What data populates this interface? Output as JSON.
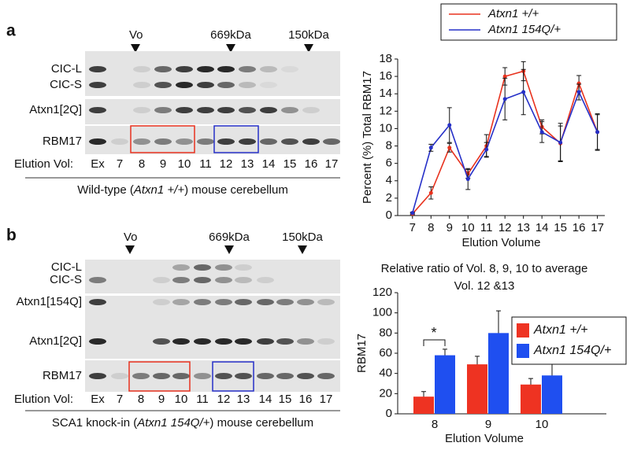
{
  "panels": [
    {
      "label": "a",
      "markers": [
        "Vo",
        "669kDa",
        "150kDa"
      ],
      "rows": [
        "CIC-L",
        "CIC-S",
        "Atxn1[2Q]",
        "RBM17"
      ],
      "lane_header": "Elution Vol:",
      "lanes": [
        "Ex",
        "7",
        "8",
        "9",
        "10",
        "11",
        "12",
        "13",
        "14",
        "15",
        "16",
        "17"
      ],
      "caption": [
        "Wild-type (",
        "Atxn1 +/+",
        ") mouse cerebellum"
      ]
    },
    {
      "label": "b",
      "markers": [
        "Vo",
        "669kDa",
        "150kDa"
      ],
      "rows": [
        "CIC-L",
        "CIC-S",
        "Atxn1[154Q]",
        "Atxn1[2Q]",
        "RBM17"
      ],
      "lane_header": "Elution Vol:",
      "lanes": [
        "Ex",
        "7",
        "8",
        "9",
        "10",
        "11",
        "12",
        "13",
        "14",
        "15",
        "16",
        "17"
      ],
      "caption": [
        "SCA1 knock-in (",
        "Atxn1 154Q/+",
        ") mouse cerebellum"
      ]
    }
  ],
  "chart_data": [
    {
      "type": "line",
      "ylabel": "Percent (%)  Total RBM17",
      "xlabel": "Elution Volume",
      "x": [
        7,
        8,
        9,
        10,
        11,
        12,
        13,
        14,
        15,
        16,
        17
      ],
      "xlim": [
        6.2,
        17.4
      ],
      "xticks": [
        7,
        8,
        9,
        10,
        11,
        12,
        13,
        14,
        15,
        16,
        17
      ],
      "ylim": [
        0,
        18
      ],
      "yticks": [
        0,
        2,
        4,
        6,
        8,
        10,
        12,
        14,
        16,
        18
      ],
      "legend": "top-right",
      "series": [
        {
          "name": "Atxn1 +/+",
          "color": "#e8321e",
          "values": [
            0.2,
            2.6,
            7.8,
            4.8,
            8.0,
            16.0,
            16.6,
            10.2,
            8.3,
            15.2,
            9.6
          ],
          "errors": [
            0.1,
            0.7,
            0.5,
            0.5,
            1.3,
            1.0,
            1.1,
            0.8,
            2.0,
            0.9,
            2.0
          ]
        },
        {
          "name": "Atxn1 154Q/+",
          "color": "#2630c8",
          "values": [
            0.3,
            7.8,
            10.4,
            4.2,
            7.6,
            13.4,
            14.2,
            9.6,
            8.4,
            14.2,
            9.6
          ],
          "errors": [
            0.1,
            0.4,
            2.0,
            1.2,
            0.8,
            2.4,
            2.6,
            1.2,
            2.2,
            0.9,
            2.1
          ]
        }
      ]
    },
    {
      "type": "bar",
      "title": [
        "Relative ratio of Vol. 8, 9, 10 to average",
        "Vol. 12 &13"
      ],
      "ylabel": "RBM17",
      "xlabel": "Elution Volume",
      "categories": [
        "8",
        "9",
        "10"
      ],
      "ylim": [
        0,
        120
      ],
      "yticks": [
        0,
        20,
        40,
        60,
        80,
        100,
        120
      ],
      "legend": "top-right",
      "annotation": "*",
      "series": [
        {
          "name": "Atxn1 +/+",
          "color": "#ee3322",
          "values": [
            17,
            49,
            29
          ],
          "errors": [
            5,
            8,
            6
          ]
        },
        {
          "name": "Atxn1 154Q/+",
          "color": "#1f4ff0",
          "values": [
            58,
            80,
            38
          ],
          "errors": [
            6,
            22,
            13
          ]
        }
      ]
    }
  ]
}
